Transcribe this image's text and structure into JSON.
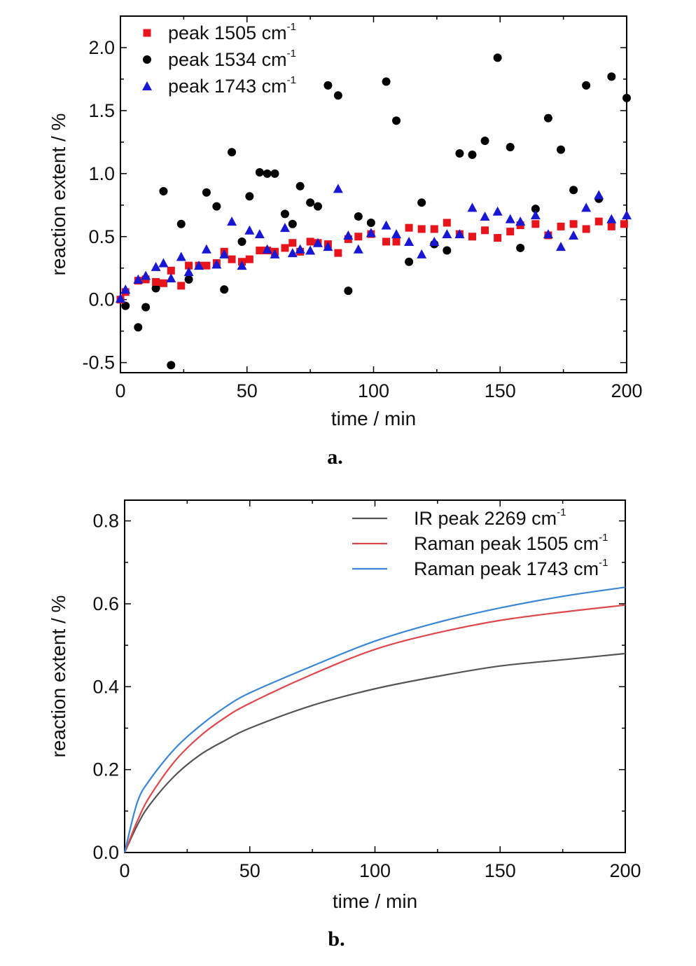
{
  "chart_data": [
    {
      "type": "scatter",
      "panel_label": "a.",
      "xlabel": "time / min",
      "ylabel": "reaction extent / %",
      "xlim": [
        0,
        200
      ],
      "ylim": [
        -0.58,
        2.25
      ],
      "xticks": [
        0,
        50,
        100,
        150,
        200
      ],
      "xtick_labels": [
        "0",
        "50",
        "100",
        "150",
        "200"
      ],
      "yticks": [
        -0.5,
        0.0,
        0.5,
        1.0,
        1.5,
        2.0
      ],
      "ytick_labels": [
        "-0.5",
        "0.0",
        "0.5",
        "1.0",
        "1.5",
        "2.0"
      ],
      "legend_position": "top-left",
      "series": [
        {
          "name": "peak 1505 cm",
          "superscript": "-1",
          "marker": "square",
          "color": "#e8141b",
          "points": [
            [
              0,
              0.0
            ],
            [
              2,
              0.06
            ],
            [
              7,
              0.15
            ],
            [
              10,
              0.16
            ],
            [
              14,
              0.14
            ],
            [
              17,
              0.13
            ],
            [
              20,
              0.23
            ],
            [
              24,
              0.11
            ],
            [
              27,
              0.27
            ],
            [
              31,
              0.27
            ],
            [
              34,
              0.27
            ],
            [
              38,
              0.29
            ],
            [
              41,
              0.38
            ],
            [
              44,
              0.32
            ],
            [
              48,
              0.3
            ],
            [
              51,
              0.32
            ],
            [
              55,
              0.39
            ],
            [
              58,
              0.39
            ],
            [
              61,
              0.38
            ],
            [
              65,
              0.41
            ],
            [
              68,
              0.45
            ],
            [
              71,
              0.38
            ],
            [
              75,
              0.46
            ],
            [
              78,
              0.45
            ],
            [
              82,
              0.44
            ],
            [
              86,
              0.37
            ],
            [
              90,
              0.48
            ],
            [
              94,
              0.5
            ],
            [
              99,
              0.52
            ],
            [
              105,
              0.46
            ],
            [
              109,
              0.46
            ],
            [
              114,
              0.57
            ],
            [
              119,
              0.56
            ],
            [
              124,
              0.56
            ],
            [
              129,
              0.61
            ],
            [
              134,
              0.52
            ],
            [
              139,
              0.5
            ],
            [
              144,
              0.55
            ],
            [
              149,
              0.49
            ],
            [
              154,
              0.54
            ],
            [
              158,
              0.59
            ],
            [
              164,
              0.6
            ],
            [
              169,
              0.51
            ],
            [
              174,
              0.58
            ],
            [
              179,
              0.6
            ],
            [
              184,
              0.56
            ],
            [
              189,
              0.62
            ],
            [
              194,
              0.58
            ],
            [
              199,
              0.6
            ]
          ]
        },
        {
          "name": "peak 1534 cm",
          "superscript": "-1",
          "marker": "circle",
          "color": "#000000",
          "points": [
            [
              2,
              -0.05
            ],
            [
              7,
              -0.22
            ],
            [
              10,
              -0.06
            ],
            [
              14,
              0.09
            ],
            [
              17,
              0.86
            ],
            [
              20,
              -0.52
            ],
            [
              24,
              0.6
            ],
            [
              27,
              0.16
            ],
            [
              34,
              0.85
            ],
            [
              38,
              0.74
            ],
            [
              41,
              0.08
            ],
            [
              44,
              1.17
            ],
            [
              48,
              0.46
            ],
            [
              51,
              0.82
            ],
            [
              55,
              1.01
            ],
            [
              58,
              1.0
            ],
            [
              61,
              1.0
            ],
            [
              65,
              0.68
            ],
            [
              68,
              0.6
            ],
            [
              71,
              0.9
            ],
            [
              75,
              0.77
            ],
            [
              78,
              0.74
            ],
            [
              82,
              1.7
            ],
            [
              86,
              1.62
            ],
            [
              90,
              0.07
            ],
            [
              94,
              0.66
            ],
            [
              99,
              0.61
            ],
            [
              105,
              1.73
            ],
            [
              109,
              1.42
            ],
            [
              114,
              0.3
            ],
            [
              119,
              0.77
            ],
            [
              124,
              0.44
            ],
            [
              129,
              0.39
            ],
            [
              134,
              1.16
            ],
            [
              139,
              1.15
            ],
            [
              144,
              1.26
            ],
            [
              149,
              1.92
            ],
            [
              154,
              1.21
            ],
            [
              158,
              0.41
            ],
            [
              164,
              0.72
            ],
            [
              169,
              1.44
            ],
            [
              174,
              1.19
            ],
            [
              179,
              0.87
            ],
            [
              184,
              1.7
            ],
            [
              189,
              0.8
            ],
            [
              194,
              1.77
            ],
            [
              200,
              1.6
            ]
          ]
        },
        {
          "name": "peak 1743 cm",
          "superscript": "-1",
          "marker": "triangle",
          "color": "#1717d4",
          "points": [
            [
              0,
              0.01
            ],
            [
              2,
              0.08
            ],
            [
              7,
              0.16
            ],
            [
              10,
              0.19
            ],
            [
              14,
              0.26
            ],
            [
              17,
              0.29
            ],
            [
              20,
              0.17
            ],
            [
              24,
              0.34
            ],
            [
              27,
              0.22
            ],
            [
              31,
              0.27
            ],
            [
              34,
              0.4
            ],
            [
              38,
              0.28
            ],
            [
              41,
              0.36
            ],
            [
              44,
              0.62
            ],
            [
              48,
              0.27
            ],
            [
              51,
              0.55
            ],
            [
              55,
              0.52
            ],
            [
              58,
              0.4
            ],
            [
              61,
              0.36
            ],
            [
              65,
              0.57
            ],
            [
              68,
              0.37
            ],
            [
              71,
              0.4
            ],
            [
              75,
              0.39
            ],
            [
              78,
              0.45
            ],
            [
              82,
              0.42
            ],
            [
              86,
              0.88
            ],
            [
              90,
              0.51
            ],
            [
              94,
              0.4
            ],
            [
              99,
              0.53
            ],
            [
              105,
              0.59
            ],
            [
              109,
              0.52
            ],
            [
              114,
              0.46
            ],
            [
              119,
              0.36
            ],
            [
              124,
              0.46
            ],
            [
              129,
              0.52
            ],
            [
              134,
              0.52
            ],
            [
              139,
              0.73
            ],
            [
              144,
              0.66
            ],
            [
              149,
              0.7
            ],
            [
              154,
              0.64
            ],
            [
              158,
              0.62
            ],
            [
              164,
              0.67
            ],
            [
              169,
              0.52
            ],
            [
              174,
              0.42
            ],
            [
              179,
              0.51
            ],
            [
              184,
              0.73
            ],
            [
              189,
              0.83
            ],
            [
              194,
              0.64
            ],
            [
              200,
              0.67
            ]
          ]
        }
      ]
    },
    {
      "type": "line",
      "panel_label": "b.",
      "xlabel": "time / min",
      "ylabel": "reaction extent / %",
      "xlim": [
        0,
        200
      ],
      "ylim": [
        0.0,
        0.85
      ],
      "xticks": [
        0,
        50,
        100,
        150,
        200
      ],
      "xtick_labels": [
        "0",
        "50",
        "100",
        "150",
        "200"
      ],
      "yticks": [
        0.0,
        0.2,
        0.4,
        0.6,
        0.8
      ],
      "ytick_labels": [
        "0.0",
        "0.2",
        "0.4",
        "0.6",
        "0.8"
      ],
      "legend_position": "top-right",
      "series": [
        {
          "name": "IR peak 2269 cm",
          "superscript": "-1",
          "color": "#555555",
          "x": [
            0,
            5,
            10,
            20,
            30,
            40,
            50,
            75,
            100,
            125,
            150,
            175,
            200
          ],
          "y": [
            0.0,
            0.065,
            0.115,
            0.185,
            0.235,
            0.27,
            0.3,
            0.355,
            0.395,
            0.425,
            0.45,
            0.465,
            0.48
          ]
        },
        {
          "name": "Raman peak 1505 cm",
          "superscript": "-1",
          "color": "#e0474c",
          "x": [
            0,
            5,
            10,
            20,
            30,
            40,
            50,
            75,
            100,
            125,
            150,
            175,
            200
          ],
          "y": [
            0.0,
            0.075,
            0.135,
            0.22,
            0.28,
            0.325,
            0.36,
            0.43,
            0.49,
            0.53,
            0.56,
            0.58,
            0.597
          ]
        },
        {
          "name": "Raman peak 1743 cm",
          "superscript": "-1",
          "color": "#3a86d6",
          "x": [
            0,
            5,
            10,
            20,
            30,
            40,
            50,
            75,
            100,
            125,
            150,
            175,
            200
          ],
          "y": [
            0.0,
            0.12,
            0.175,
            0.25,
            0.305,
            0.35,
            0.385,
            0.45,
            0.51,
            0.555,
            0.59,
            0.618,
            0.64
          ]
        }
      ]
    }
  ]
}
